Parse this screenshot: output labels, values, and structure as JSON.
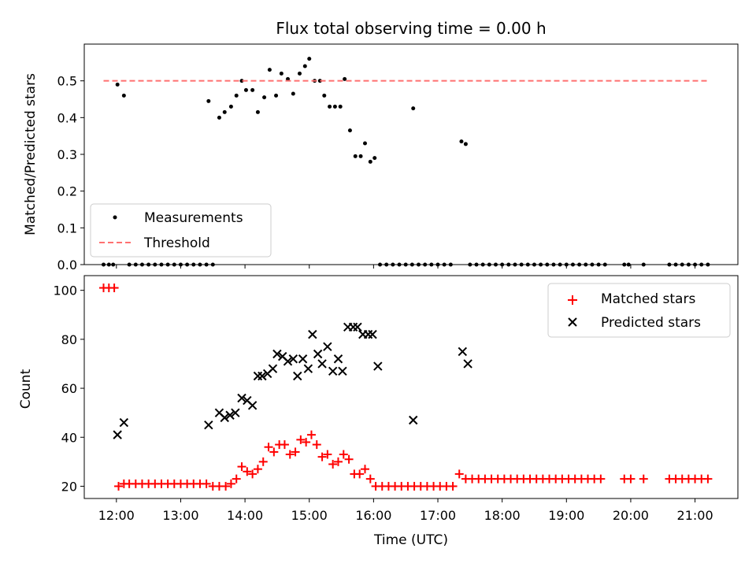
{
  "chart_data": {
    "title": "Flux total observing time = 0.00 h",
    "type": "scatter",
    "x_ticks": [
      "12:00",
      "13:00",
      "14:00",
      "15:00",
      "16:00",
      "17:00",
      "18:00",
      "19:00",
      "20:00",
      "21:00"
    ],
    "xlabel": "Time (UTC)",
    "xlim": [
      "11:30",
      "21:40"
    ],
    "panels": [
      {
        "id": "top",
        "ylabel": "Matched/Predicted stars",
        "ylim": [
          0,
          0.6
        ],
        "y_ticks": [
          "0.0",
          "0.1",
          "0.2",
          "0.3",
          "0.4",
          "0.5"
        ],
        "legend_position": "lower-left",
        "series": [
          {
            "name": "Measurements",
            "marker": "dot",
            "color": "#000000",
            "points": [
              [
                "11:48",
                0
              ],
              [
                "11:53",
                0
              ],
              [
                "11:57",
                0
              ],
              [
                "12:01",
                0.49
              ],
              [
                "12:07",
                0.46
              ],
              [
                "12:12",
                0
              ],
              [
                "12:18",
                0
              ],
              [
                "12:24",
                0
              ],
              [
                "12:30",
                0
              ],
              [
                "12:36",
                0
              ],
              [
                "12:42",
                0
              ],
              [
                "12:48",
                0
              ],
              [
                "12:54",
                0
              ],
              [
                "13:00",
                0
              ],
              [
                "13:06",
                0
              ],
              [
                "13:12",
                0
              ],
              [
                "13:18",
                0
              ],
              [
                "13:24",
                0
              ],
              [
                "13:30",
                0
              ],
              [
                "13:26",
                0.445
              ],
              [
                "13:36",
                0.4
              ],
              [
                "13:41",
                0.415
              ],
              [
                "13:47",
                0.43
              ],
              [
                "13:52",
                0.46
              ],
              [
                "13:57",
                0.5
              ],
              [
                "14:01",
                0.475
              ],
              [
                "14:07",
                0.475
              ],
              [
                "14:12",
                0.415
              ],
              [
                "14:18",
                0.455
              ],
              [
                "14:23",
                0.53
              ],
              [
                "14:29",
                0.46
              ],
              [
                "14:34",
                0.52
              ],
              [
                "14:40",
                0.505
              ],
              [
                "14:45",
                0.465
              ],
              [
                "14:51",
                0.52
              ],
              [
                "14:56",
                0.54
              ],
              [
                "15:00",
                0.56
              ],
              [
                "15:05",
                0.5
              ],
              [
                "15:10",
                0.5
              ],
              [
                "15:14",
                0.46
              ],
              [
                "15:19",
                0.43
              ],
              [
                "15:24",
                0.43
              ],
              [
                "15:29",
                0.43
              ],
              [
                "15:33",
                0.505
              ],
              [
                "15:38",
                0.365
              ],
              [
                "15:43",
                0.295
              ],
              [
                "15:48",
                0.295
              ],
              [
                "15:52",
                0.33
              ],
              [
                "15:57",
                0.28
              ],
              [
                "16:01",
                0.29
              ],
              [
                "16:37",
                0.425
              ],
              [
                "17:22",
                0.335
              ],
              [
                "17:26",
                0.328
              ],
              [
                "16:06",
                0
              ],
              [
                "16:12",
                0
              ],
              [
                "16:18",
                0
              ],
              [
                "16:24",
                0
              ],
              [
                "16:30",
                0
              ],
              [
                "16:36",
                0
              ],
              [
                "16:42",
                0
              ],
              [
                "16:48",
                0
              ],
              [
                "16:54",
                0
              ],
              [
                "17:00",
                0
              ],
              [
                "17:06",
                0
              ],
              [
                "17:12",
                0
              ],
              [
                "17:30",
                0
              ],
              [
                "17:36",
                0
              ],
              [
                "17:42",
                0
              ],
              [
                "17:48",
                0
              ],
              [
                "17:54",
                0
              ],
              [
                "18:00",
                0
              ],
              [
                "18:06",
                0
              ],
              [
                "18:12",
                0
              ],
              [
                "18:18",
                0
              ],
              [
                "18:24",
                0
              ],
              [
                "18:30",
                0
              ],
              [
                "18:36",
                0
              ],
              [
                "18:42",
                0
              ],
              [
                "18:48",
                0
              ],
              [
                "18:54",
                0
              ],
              [
                "19:00",
                0
              ],
              [
                "19:06",
                0
              ],
              [
                "19:12",
                0
              ],
              [
                "19:18",
                0
              ],
              [
                "19:24",
                0
              ],
              [
                "19:30",
                0
              ],
              [
                "19:36",
                0
              ],
              [
                "19:54",
                0
              ],
              [
                "19:58",
                0
              ],
              [
                "20:12",
                0
              ],
              [
                "20:36",
                0
              ],
              [
                "20:42",
                0
              ],
              [
                "20:48",
                0
              ],
              [
                "20:54",
                0
              ],
              [
                "21:00",
                0
              ],
              [
                "21:06",
                0
              ],
              [
                "21:12",
                0
              ]
            ]
          },
          {
            "name": "Threshold",
            "kind": "hline",
            "style": "dashed",
            "color": "#ff7070",
            "y": 0.5,
            "x_range": [
              "11:48",
              "21:12"
            ]
          }
        ]
      },
      {
        "id": "bottom",
        "ylabel": "Count",
        "ylim": [
          15,
          106
        ],
        "y_ticks": [
          "20",
          "40",
          "60",
          "80",
          "100"
        ],
        "legend_position": "upper-right",
        "series": [
          {
            "name": "Matched stars",
            "marker": "plus",
            "color": "#ff0000",
            "points": [
              [
                "11:48",
                101
              ],
              [
                "11:53",
                101
              ],
              [
                "11:58",
                101
              ],
              [
                "12:02",
                20
              ],
              [
                "12:07",
                21
              ],
              [
                "12:12",
                21
              ],
              [
                "12:18",
                21
              ],
              [
                "12:24",
                21
              ],
              [
                "12:30",
                21
              ],
              [
                "12:36",
                21
              ],
              [
                "12:42",
                21
              ],
              [
                "12:48",
                21
              ],
              [
                "12:54",
                21
              ],
              [
                "13:00",
                21
              ],
              [
                "13:06",
                21
              ],
              [
                "13:12",
                21
              ],
              [
                "13:18",
                21
              ],
              [
                "13:24",
                21
              ],
              [
                "13:30",
                20
              ],
              [
                "13:36",
                20
              ],
              [
                "13:42",
                20
              ],
              [
                "13:47",
                21
              ],
              [
                "13:52",
                23
              ],
              [
                "13:57",
                28
              ],
              [
                "14:02",
                26
              ],
              [
                "14:07",
                25
              ],
              [
                "14:12",
                27
              ],
              [
                "14:17",
                30
              ],
              [
                "14:22",
                36
              ],
              [
                "14:27",
                34
              ],
              [
                "14:32",
                37
              ],
              [
                "14:37",
                37
              ],
              [
                "14:42",
                33
              ],
              [
                "14:47",
                34
              ],
              [
                "14:52",
                39
              ],
              [
                "14:57",
                38
              ],
              [
                "15:02",
                41
              ],
              [
                "15:07",
                37
              ],
              [
                "15:12",
                32
              ],
              [
                "15:17",
                33
              ],
              [
                "15:22",
                29
              ],
              [
                "15:27",
                30
              ],
              [
                "15:32",
                33
              ],
              [
                "15:37",
                31
              ],
              [
                "15:42",
                25
              ],
              [
                "15:47",
                25
              ],
              [
                "15:52",
                27
              ],
              [
                "15:57",
                23
              ],
              [
                "16:02",
                20
              ],
              [
                "16:08",
                20
              ],
              [
                "16:14",
                20
              ],
              [
                "16:20",
                20
              ],
              [
                "16:26",
                20
              ],
              [
                "16:32",
                20
              ],
              [
                "16:38",
                20
              ],
              [
                "16:44",
                20
              ],
              [
                "16:50",
                20
              ],
              [
                "16:56",
                20
              ],
              [
                "17:02",
                20
              ],
              [
                "17:08",
                20
              ],
              [
                "17:14",
                20
              ],
              [
                "17:20",
                25
              ],
              [
                "17:26",
                23
              ],
              [
                "17:32",
                23
              ],
              [
                "17:38",
                23
              ],
              [
                "17:44",
                23
              ],
              [
                "17:50",
                23
              ],
              [
                "17:56",
                23
              ],
              [
                "18:02",
                23
              ],
              [
                "18:08",
                23
              ],
              [
                "18:14",
                23
              ],
              [
                "18:20",
                23
              ],
              [
                "18:26",
                23
              ],
              [
                "18:32",
                23
              ],
              [
                "18:38",
                23
              ],
              [
                "18:44",
                23
              ],
              [
                "18:50",
                23
              ],
              [
                "18:56",
                23
              ],
              [
                "19:02",
                23
              ],
              [
                "19:08",
                23
              ],
              [
                "19:14",
                23
              ],
              [
                "19:20",
                23
              ],
              [
                "19:26",
                23
              ],
              [
                "19:32",
                23
              ],
              [
                "19:54",
                23
              ],
              [
                "20:00",
                23
              ],
              [
                "20:12",
                23
              ],
              [
                "20:36",
                23
              ],
              [
                "20:42",
                23
              ],
              [
                "20:48",
                23
              ],
              [
                "20:54",
                23
              ],
              [
                "21:00",
                23
              ],
              [
                "21:06",
                23
              ],
              [
                "21:12",
                23
              ]
            ]
          },
          {
            "name": "Predicted stars",
            "marker": "x",
            "color": "#000000",
            "points": [
              [
                "12:01",
                41
              ],
              [
                "12:07",
                46
              ],
              [
                "13:26",
                45
              ],
              [
                "13:36",
                50
              ],
              [
                "13:41",
                48
              ],
              [
                "13:46",
                49
              ],
              [
                "13:51",
                50
              ],
              [
                "13:57",
                56
              ],
              [
                "14:02",
                55
              ],
              [
                "14:07",
                53
              ],
              [
                "14:12",
                65
              ],
              [
                "14:16",
                65
              ],
              [
                "14:21",
                66
              ],
              [
                "14:26",
                68
              ],
              [
                "14:30",
                74
              ],
              [
                "14:35",
                73
              ],
              [
                "14:40",
                71
              ],
              [
                "14:45",
                72
              ],
              [
                "14:49",
                65
              ],
              [
                "14:54",
                72
              ],
              [
                "14:59",
                68
              ],
              [
                "15:03",
                82
              ],
              [
                "15:08",
                74
              ],
              [
                "15:12",
                70
              ],
              [
                "15:17",
                77
              ],
              [
                "15:22",
                67
              ],
              [
                "15:27",
                72
              ],
              [
                "15:31",
                67
              ],
              [
                "15:36",
                85
              ],
              [
                "15:41",
                85
              ],
              [
                "15:45",
                85
              ],
              [
                "15:50",
                82
              ],
              [
                "15:55",
                82
              ],
              [
                "15:59",
                82
              ],
              [
                "16:04",
                69
              ],
              [
                "16:37",
                47
              ],
              [
                "17:23",
                75
              ],
              [
                "17:28",
                70
              ]
            ]
          }
        ]
      }
    ]
  }
}
